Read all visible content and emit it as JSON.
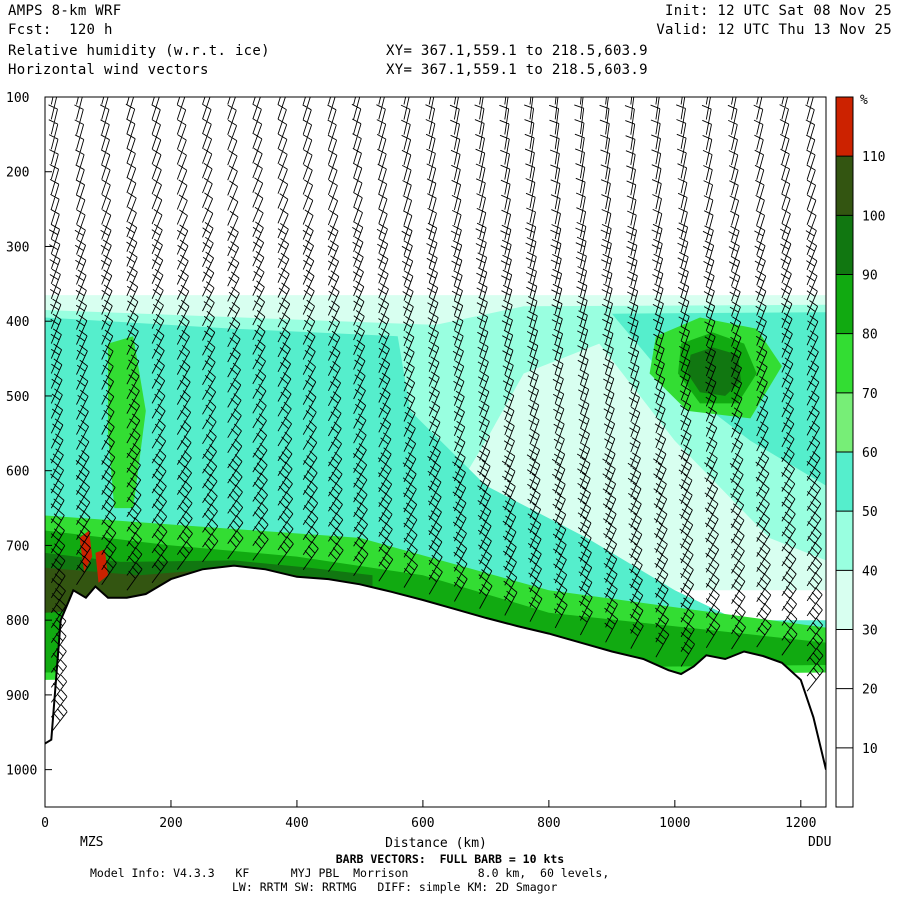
{
  "header": {
    "model": "AMPS 8-km WRF",
    "forecast": "Fcst:  120 h",
    "field1": "Relative humidity (w.r.t. ice)",
    "field2": "Horizontal wind vectors",
    "xy1": "XY= 367.1,559.1 to 218.5,603.9",
    "xy2": "XY= 367.1,559.1 to 218.5,603.9",
    "init": "Init: 12 UTC Sat 08 Nov 25",
    "valid": "Valid: 12 UTC Thu 13 Nov 25"
  },
  "footer": {
    "barb_note": "BARB VECTORS:  FULL BARB = 10 kts",
    "model_info": "Model Info: V4.3.3   KF      MYJ PBL  Morrison          8.0 km,  60 levels,",
    "physics": "LW: RRTM SW: RRTMG   DIFF: simple KM: 2D Smagor"
  },
  "chart_data": {
    "type": "heatmap",
    "title": "Relative humidity (w.r.t. ice)",
    "xlabel": "Distance (km)",
    "ylabel": "",
    "x_ticks": [
      "0",
      "200",
      "400",
      "600",
      "800",
      "1000",
      "1200"
    ],
    "y_ticks": [
      "100",
      "200",
      "300",
      "400",
      "500",
      "600",
      "700",
      "800",
      "900",
      "1000"
    ],
    "xlim": [
      0,
      1240
    ],
    "ylim": [
      1050,
      100
    ],
    "x_end_labels": {
      "left": "MZS",
      "right": "DDU"
    },
    "colorbar": {
      "unit": "%",
      "levels": [
        10,
        20,
        30,
        40,
        50,
        60,
        70,
        80,
        90,
        100,
        110
      ],
      "colors": [
        "#ffffff",
        "#ffffff",
        "#ffffff",
        "#d8fff0",
        "#99ffe0",
        "#55eecc",
        "#77ee77",
        "#33dd33",
        "#11aa11",
        "#117711",
        "#335511",
        "#cc2200"
      ]
    },
    "terrain_profile": [
      [
        0,
        965
      ],
      [
        10,
        960
      ],
      [
        25,
        800
      ],
      [
        45,
        760
      ],
      [
        65,
        770
      ],
      [
        80,
        755
      ],
      [
        100,
        770
      ],
      [
        130,
        770
      ],
      [
        160,
        765
      ],
      [
        200,
        745
      ],
      [
        250,
        732
      ],
      [
        300,
        727
      ],
      [
        350,
        732
      ],
      [
        400,
        742
      ],
      [
        450,
        745
      ],
      [
        500,
        752
      ],
      [
        550,
        762
      ],
      [
        600,
        773
      ],
      [
        650,
        785
      ],
      [
        700,
        797
      ],
      [
        750,
        808
      ],
      [
        800,
        818
      ],
      [
        850,
        830
      ],
      [
        900,
        842
      ],
      [
        950,
        852
      ],
      [
        990,
        867
      ],
      [
        1010,
        872
      ],
      [
        1030,
        862
      ],
      [
        1050,
        847
      ],
      [
        1080,
        852
      ],
      [
        1110,
        842
      ],
      [
        1140,
        848
      ],
      [
        1170,
        857
      ],
      [
        1200,
        880
      ],
      [
        1220,
        930
      ],
      [
        1240,
        1000
      ]
    ],
    "rh_regions": [
      {
        "rh": 35,
        "poly": [
          [
            0,
            365
          ],
          [
            1240,
            365
          ],
          [
            1240,
            760
          ],
          [
            0,
            760
          ]
        ]
      },
      {
        "rh": 45,
        "poly": [
          [
            0,
            385
          ],
          [
            620,
            405
          ],
          [
            760,
            380
          ],
          [
            1240,
            378
          ],
          [
            1240,
            720
          ],
          [
            1150,
            690
          ],
          [
            1000,
            560
          ],
          [
            880,
            430
          ],
          [
            760,
            470
          ],
          [
            700,
            560
          ],
          [
            600,
            700
          ],
          [
            400,
            680
          ],
          [
            0,
            700
          ]
        ]
      },
      {
        "rh": 55,
        "poly": [
          [
            0,
            395
          ],
          [
            300,
            410
          ],
          [
            560,
            420
          ],
          [
            580,
            520
          ],
          [
            700,
            620
          ],
          [
            860,
            690
          ],
          [
            1000,
            760
          ],
          [
            1100,
            800
          ],
          [
            1240,
            800
          ],
          [
            1240,
            860
          ],
          [
            0,
            870
          ]
        ]
      },
      {
        "rh": 55,
        "poly": [
          [
            900,
            390
          ],
          [
            1240,
            388
          ],
          [
            1240,
            620
          ],
          [
            1120,
            560
          ],
          [
            980,
            470
          ]
        ]
      },
      {
        "rh": 75,
        "poly": [
          [
            0,
            660
          ],
          [
            500,
            690
          ],
          [
            800,
            760
          ],
          [
            1240,
            810
          ],
          [
            1240,
            870
          ],
          [
            0,
            880
          ]
        ]
      },
      {
        "rh": 75,
        "poly": [
          [
            970,
            420
          ],
          [
            1040,
            395
          ],
          [
            1130,
            410
          ],
          [
            1170,
            460
          ],
          [
            1120,
            530
          ],
          [
            1020,
            520
          ],
          [
            960,
            470
          ]
        ]
      },
      {
        "rh": 75,
        "poly": [
          [
            100,
            430
          ],
          [
            140,
            420
          ],
          [
            160,
            520
          ],
          [
            140,
            650
          ],
          [
            110,
            650
          ],
          [
            100,
            550
          ]
        ]
      },
      {
        "rh": 85,
        "poly": [
          [
            0,
            680
          ],
          [
            200,
            700
          ],
          [
            400,
            715
          ],
          [
            600,
            740
          ],
          [
            800,
            790
          ],
          [
            1240,
            830
          ],
          [
            1240,
            860
          ],
          [
            0,
            870
          ]
        ]
      },
      {
        "rh": 85,
        "poly": [
          [
            1010,
            430
          ],
          [
            1060,
            415
          ],
          [
            1110,
            430
          ],
          [
            1130,
            470
          ],
          [
            1100,
            510
          ],
          [
            1040,
            510
          ],
          [
            1005,
            470
          ]
        ]
      },
      {
        "rh": 95,
        "poly": [
          [
            1025,
            445
          ],
          [
            1060,
            435
          ],
          [
            1100,
            445
          ],
          [
            1105,
            480
          ],
          [
            1080,
            500
          ],
          [
            1040,
            495
          ],
          [
            1020,
            470
          ]
        ]
      },
      {
        "rh": 95,
        "poly": [
          [
            0,
            710
          ],
          [
            120,
            722
          ],
          [
            300,
            720
          ],
          [
            420,
            730
          ],
          [
            520,
            740
          ],
          [
            520,
            770
          ],
          [
            0,
            790
          ]
        ]
      },
      {
        "rh": 105,
        "poly": [
          [
            0,
            730
          ],
          [
            150,
            740
          ],
          [
            300,
            730
          ],
          [
            400,
            740
          ],
          [
            420,
            760
          ],
          [
            0,
            790
          ]
        ]
      },
      {
        "rh": 115,
        "poly": [
          [
            55,
            690
          ],
          [
            70,
            680
          ],
          [
            75,
            715
          ],
          [
            62,
            735
          ]
        ]
      },
      {
        "rh": 115,
        "poly": [
          [
            80,
            710
          ],
          [
            95,
            705
          ],
          [
            100,
            740
          ],
          [
            85,
            750
          ]
        ]
      }
    ],
    "wind_barbs": {
      "spacing_km": 40,
      "top_hpa": 110,
      "note": "FULL BARB = 10 kts"
    }
  }
}
